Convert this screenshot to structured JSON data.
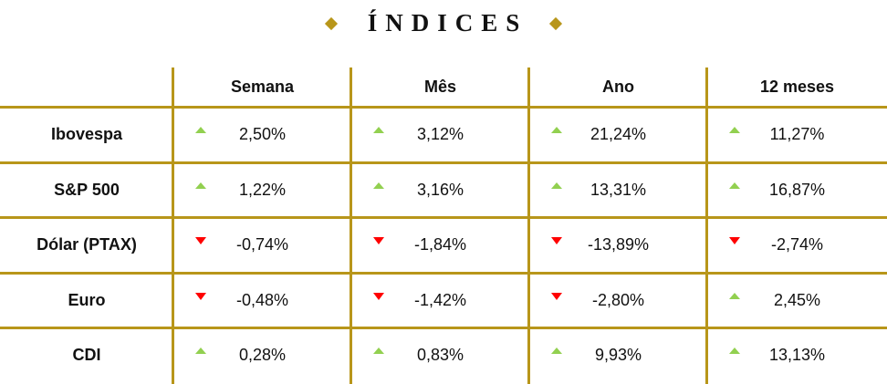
{
  "title": "ÍNDICES",
  "colors": {
    "gold": "#B8961A",
    "up": "#92D050",
    "down": "#FF0000"
  },
  "columns": [
    "Semana",
    "Mês",
    "Ano",
    "12 meses"
  ],
  "rows": [
    {
      "label": "Ibovespa",
      "values": [
        "2,50%",
        "3,12%",
        "21,24%",
        "11,27%"
      ],
      "trend": [
        "up",
        "up",
        "up",
        "up"
      ]
    },
    {
      "label": "S&P 500",
      "values": [
        "1,22%",
        "3,16%",
        "13,31%",
        "16,87%"
      ],
      "trend": [
        "up",
        "up",
        "up",
        "up"
      ]
    },
    {
      "label": "Dólar (PTAX)",
      "values": [
        "-0,74%",
        "-1,84%",
        "-13,89%",
        "-2,74%"
      ],
      "trend": [
        "down",
        "down",
        "down",
        "down"
      ]
    },
    {
      "label": "Euro",
      "values": [
        "-0,48%",
        "-1,42%",
        "-2,80%",
        "2,45%"
      ],
      "trend": [
        "down",
        "down",
        "down",
        "up"
      ]
    },
    {
      "label": "CDI",
      "values": [
        "0,28%",
        "0,83%",
        "9,93%",
        "13,13%"
      ],
      "trend": [
        "up",
        "up",
        "up",
        "up"
      ]
    }
  ]
}
